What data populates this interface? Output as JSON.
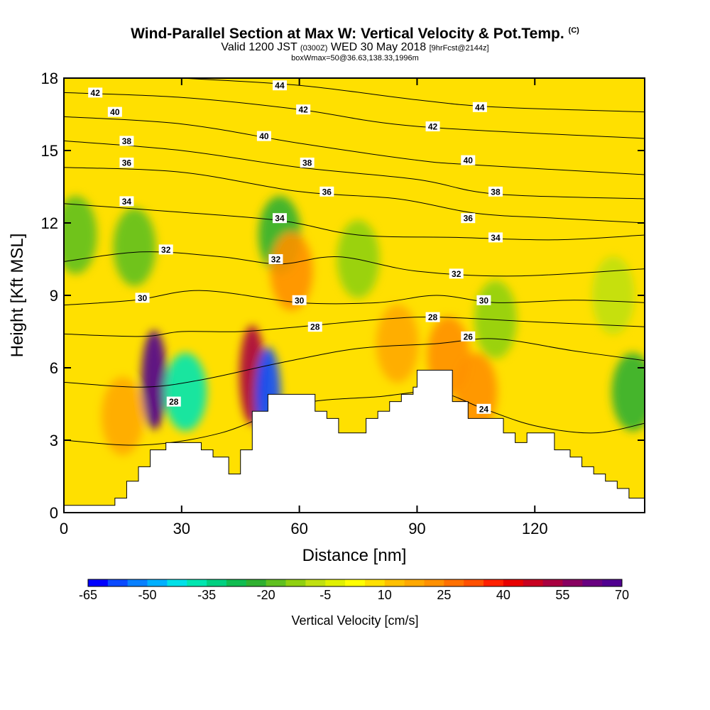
{
  "title": {
    "line1": "Wind-Parallel Section at Max W: Vertical Velocity & Pot.Temp.",
    "line1_unit": "(C)",
    "line2_a": "Valid 1200 JST",
    "line2_b": "(0300Z)",
    "line2_c": "WED 30 May 2018",
    "line2_d": "[9hrFcst@2144z]",
    "line3": "boxWmax=50@36.63,138.33,1996m"
  },
  "chart_data": {
    "type": "heatmap",
    "xlabel": "Distance [nm]",
    "ylabel": "Height [Kft MSL]",
    "xlim": [
      0,
      148
    ],
    "ylim": [
      0,
      18
    ],
    "x_ticks": [
      "0",
      "30",
      "60",
      "90",
      "120"
    ],
    "x_tick_values": [
      0,
      30,
      60,
      90,
      120
    ],
    "y_ticks": [
      "0",
      "3",
      "6",
      "9",
      "12",
      "15",
      "18"
    ],
    "y_tick_values": [
      0,
      3,
      6,
      9,
      12,
      15,
      18
    ],
    "colorbar": {
      "title": "Vertical Velocity [cm/s]",
      "labels": [
        "-65",
        "-50",
        "-35",
        "-20",
        "-5",
        "10",
        "25",
        "40",
        "55",
        "70"
      ],
      "colors": [
        "#0000ff",
        "#0a4aff",
        "#0880ff",
        "#00b0ff",
        "#00e0e8",
        "#00e6b0",
        "#00d080",
        "#10bc50",
        "#30b030",
        "#60c020",
        "#90d010",
        "#c0e010",
        "#e0f000",
        "#ffff00",
        "#ffe000",
        "#ffc000",
        "#ffa800",
        "#ff9000",
        "#ff7000",
        "#ff5000",
        "#ff2000",
        "#e80000",
        "#c80020",
        "#a80040",
        "#880060",
        "#680080",
        "#500090"
      ]
    },
    "background_velocity_cms": 8,
    "velocity_features": [
      {
        "x": 23,
        "y": 5.5,
        "w_cms": 70
      },
      {
        "x": 31,
        "y": 5.0,
        "w_cms": -40
      },
      {
        "x": 48,
        "y": 5.7,
        "w_cms": 55
      },
      {
        "x": 52,
        "y": 4.8,
        "w_cms": -60
      },
      {
        "x": 55,
        "y": 11.5,
        "w_cms": -25
      },
      {
        "x": 58,
        "y": 10.0,
        "w_cms": 22
      },
      {
        "x": 18,
        "y": 11.0,
        "w_cms": -20
      },
      {
        "x": 3,
        "y": 11.5,
        "w_cms": -20
      },
      {
        "x": 75,
        "y": 10.5,
        "w_cms": -12
      },
      {
        "x": 110,
        "y": 8.0,
        "w_cms": -12
      },
      {
        "x": 140,
        "y": 9.0,
        "w_cms": -10
      },
      {
        "x": 145,
        "y": 5.0,
        "w_cms": -25
      },
      {
        "x": 98,
        "y": 6.5,
        "w_cms": 22
      },
      {
        "x": 105,
        "y": 5.0,
        "w_cms": 22
      },
      {
        "x": 15,
        "y": 4.0,
        "w_cms": 18
      },
      {
        "x": 85,
        "y": 7.0,
        "w_cms": 16
      }
    ],
    "terrain_kft": [
      {
        "x": 0,
        "h": 0.3
      },
      {
        "x": 13,
        "h": 0.3
      },
      {
        "x": 13,
        "h": 0.6
      },
      {
        "x": 16,
        "h": 0.6
      },
      {
        "x": 16,
        "h": 1.3
      },
      {
        "x": 19,
        "h": 1.3
      },
      {
        "x": 19,
        "h": 1.9
      },
      {
        "x": 22,
        "h": 1.9
      },
      {
        "x": 22,
        "h": 2.6
      },
      {
        "x": 26,
        "h": 2.6
      },
      {
        "x": 26,
        "h": 2.9
      },
      {
        "x": 35,
        "h": 2.9
      },
      {
        "x": 35,
        "h": 2.6
      },
      {
        "x": 38,
        "h": 2.6
      },
      {
        "x": 38,
        "h": 2.3
      },
      {
        "x": 42,
        "h": 2.3
      },
      {
        "x": 42,
        "h": 1.6
      },
      {
        "x": 45,
        "h": 1.6
      },
      {
        "x": 45,
        "h": 2.6
      },
      {
        "x": 48,
        "h": 2.6
      },
      {
        "x": 48,
        "h": 4.2
      },
      {
        "x": 52,
        "h": 4.2
      },
      {
        "x": 52,
        "h": 4.9
      },
      {
        "x": 64,
        "h": 4.9
      },
      {
        "x": 64,
        "h": 4.2
      },
      {
        "x": 67,
        "h": 4.2
      },
      {
        "x": 67,
        "h": 3.9
      },
      {
        "x": 70,
        "h": 3.9
      },
      {
        "x": 70,
        "h": 3.3
      },
      {
        "x": 77,
        "h": 3.3
      },
      {
        "x": 77,
        "h": 3.9
      },
      {
        "x": 80,
        "h": 3.9
      },
      {
        "x": 80,
        "h": 4.2
      },
      {
        "x": 83,
        "h": 4.2
      },
      {
        "x": 83,
        "h": 4.6
      },
      {
        "x": 86,
        "h": 4.6
      },
      {
        "x": 86,
        "h": 4.9
      },
      {
        "x": 89,
        "h": 4.9
      },
      {
        "x": 89,
        "h": 5.2
      },
      {
        "x": 90,
        "h": 5.2
      },
      {
        "x": 90,
        "h": 5.9
      },
      {
        "x": 99,
        "h": 5.9
      },
      {
        "x": 99,
        "h": 4.6
      },
      {
        "x": 103,
        "h": 4.6
      },
      {
        "x": 103,
        "h": 3.9
      },
      {
        "x": 112,
        "h": 3.9
      },
      {
        "x": 112,
        "h": 3.3
      },
      {
        "x": 115,
        "h": 3.3
      },
      {
        "x": 115,
        "h": 2.9
      },
      {
        "x": 118,
        "h": 2.9
      },
      {
        "x": 118,
        "h": 3.3
      },
      {
        "x": 125,
        "h": 3.3
      },
      {
        "x": 125,
        "h": 2.6
      },
      {
        "x": 129,
        "h": 2.6
      },
      {
        "x": 129,
        "h": 2.3
      },
      {
        "x": 132,
        "h": 2.3
      },
      {
        "x": 132,
        "h": 1.9
      },
      {
        "x": 135,
        "h": 1.9
      },
      {
        "x": 135,
        "h": 1.6
      },
      {
        "x": 138,
        "h": 1.6
      },
      {
        "x": 138,
        "h": 1.3
      },
      {
        "x": 141,
        "h": 1.3
      },
      {
        "x": 141,
        "h": 1.0
      },
      {
        "x": 144,
        "h": 1.0
      },
      {
        "x": 144,
        "h": 0.6
      },
      {
        "x": 148,
        "h": 0.6
      }
    ],
    "isentropes": [
      {
        "theta": 24,
        "pts": [
          [
            0,
            3.0
          ],
          [
            20,
            2.8
          ],
          [
            40,
            3.3
          ],
          [
            60,
            4.5
          ],
          [
            80,
            4.8
          ],
          [
            95,
            5.0
          ],
          [
            107,
            4.3
          ],
          [
            120,
            3.6
          ],
          [
            135,
            3.3
          ],
          [
            148,
            3.7
          ]
        ]
      },
      {
        "theta": 26,
        "pts": [
          [
            0,
            5.4
          ],
          [
            20,
            5.2
          ],
          [
            35,
            5.5
          ],
          [
            55,
            6.2
          ],
          [
            75,
            6.8
          ],
          [
            95,
            7.0
          ],
          [
            110,
            7.2
          ],
          [
            130,
            6.7
          ],
          [
            148,
            6.3
          ]
        ]
      },
      {
        "theta": 28,
        "pts": [
          [
            0,
            7.4
          ],
          [
            20,
            7.3
          ],
          [
            30,
            7.5
          ],
          [
            45,
            7.5
          ],
          [
            60,
            7.7
          ],
          [
            80,
            8.0
          ],
          [
            95,
            8.1
          ],
          [
            120,
            7.9
          ],
          [
            148,
            7.7
          ]
        ]
      },
      {
        "theta": 30,
        "pts": [
          [
            0,
            8.6
          ],
          [
            18,
            8.8
          ],
          [
            35,
            9.2
          ],
          [
            60,
            8.7
          ],
          [
            80,
            8.7
          ],
          [
            95,
            9.0
          ],
          [
            110,
            8.7
          ],
          [
            130,
            8.8
          ],
          [
            148,
            8.7
          ]
        ]
      },
      {
        "theta": 32,
        "pts": [
          [
            0,
            10.4
          ],
          [
            20,
            10.8
          ],
          [
            40,
            10.6
          ],
          [
            55,
            10.3
          ],
          [
            70,
            10.6
          ],
          [
            90,
            10.0
          ],
          [
            115,
            9.8
          ],
          [
            148,
            10.1
          ]
        ]
      },
      {
        "theta": 34,
        "pts": [
          [
            0,
            12.8
          ],
          [
            25,
            12.5
          ],
          [
            55,
            12.1
          ],
          [
            75,
            11.5
          ],
          [
            100,
            11.4
          ],
          [
            125,
            11.3
          ],
          [
            148,
            11.5
          ]
        ]
      },
      {
        "theta": 36,
        "pts": [
          [
            0,
            14.3
          ],
          [
            30,
            14.1
          ],
          [
            60,
            13.3
          ],
          [
            85,
            13.0
          ],
          [
            105,
            12.4
          ],
          [
            125,
            12.2
          ],
          [
            148,
            12.0
          ]
        ]
      },
      {
        "theta": 38,
        "pts": [
          [
            0,
            15.4
          ],
          [
            30,
            15.0
          ],
          [
            60,
            14.3
          ],
          [
            90,
            13.8
          ],
          [
            110,
            13.2
          ],
          [
            148,
            13.0
          ]
        ]
      },
      {
        "theta": 40,
        "pts": [
          [
            0,
            16.4
          ],
          [
            30,
            16.1
          ],
          [
            60,
            15.3
          ],
          [
            90,
            14.6
          ],
          [
            105,
            14.4
          ],
          [
            148,
            14.0
          ]
        ]
      },
      {
        "theta": 42,
        "pts": [
          [
            0,
            17.4
          ],
          [
            30,
            17.2
          ],
          [
            60,
            16.7
          ],
          [
            90,
            16.0
          ],
          [
            148,
            15.5
          ]
        ]
      },
      {
        "theta": 44,
        "pts": [
          [
            30,
            18.0
          ],
          [
            60,
            17.7
          ],
          [
            90,
            17.1
          ],
          [
            110,
            16.8
          ],
          [
            148,
            16.6
          ]
        ]
      }
    ],
    "contour_labels": [
      {
        "text": "42",
        "x": 8,
        "y": 17.4
      },
      {
        "text": "40",
        "x": 13,
        "y": 16.6
      },
      {
        "text": "38",
        "x": 16,
        "y": 15.4
      },
      {
        "text": "36",
        "x": 16,
        "y": 14.5
      },
      {
        "text": "34",
        "x": 16,
        "y": 12.9
      },
      {
        "text": "32",
        "x": 26,
        "y": 10.9
      },
      {
        "text": "30",
        "x": 20,
        "y": 8.9
      },
      {
        "text": "28",
        "x": 28,
        "y": 4.6
      },
      {
        "text": "44",
        "x": 55,
        "y": 17.7
      },
      {
        "text": "42",
        "x": 61,
        "y": 16.7
      },
      {
        "text": "40",
        "x": 51,
        "y": 15.6
      },
      {
        "text": "38",
        "x": 62,
        "y": 14.5
      },
      {
        "text": "36",
        "x": 67,
        "y": 13.3
      },
      {
        "text": "34",
        "x": 55,
        "y": 12.2
      },
      {
        "text": "32",
        "x": 54,
        "y": 10.5
      },
      {
        "text": "30",
        "x": 60,
        "y": 8.8
      },
      {
        "text": "28",
        "x": 64,
        "y": 7.7
      },
      {
        "text": "42",
        "x": 94,
        "y": 16.0
      },
      {
        "text": "44",
        "x": 106,
        "y": 16.8
      },
      {
        "text": "40",
        "x": 103,
        "y": 14.6
      },
      {
        "text": "38",
        "x": 110,
        "y": 13.3
      },
      {
        "text": "36",
        "x": 103,
        "y": 12.2
      },
      {
        "text": "34",
        "x": 110,
        "y": 11.4
      },
      {
        "text": "32",
        "x": 100,
        "y": 9.9
      },
      {
        "text": "30",
        "x": 107,
        "y": 8.8
      },
      {
        "text": "28",
        "x": 94,
        "y": 8.1
      },
      {
        "text": "26",
        "x": 103,
        "y": 7.3
      },
      {
        "text": "24",
        "x": 107,
        "y": 4.3
      }
    ]
  }
}
